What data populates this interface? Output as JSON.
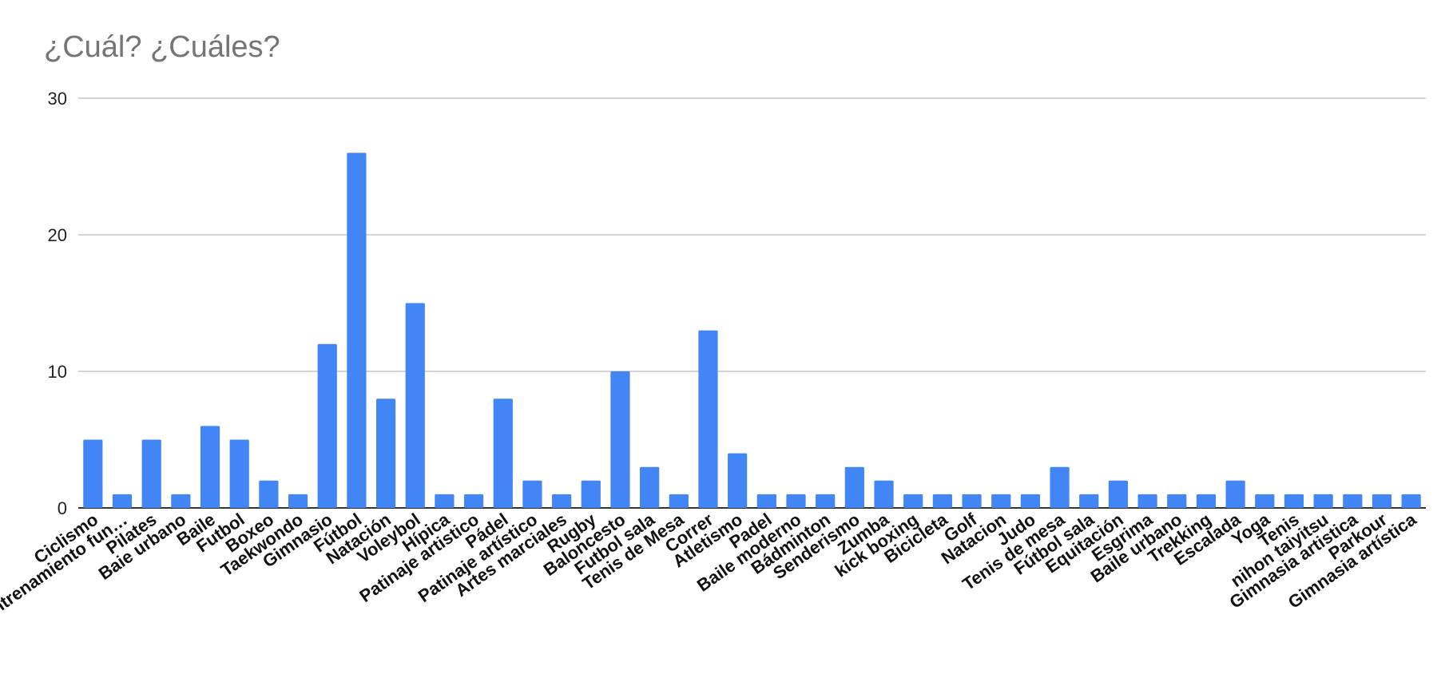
{
  "chart_data": {
    "type": "bar",
    "title": "¿Cuál? ¿Cuáles?",
    "xlabel": "",
    "ylabel": "",
    "ylim": [
      0,
      30
    ],
    "yticks": [
      0,
      10,
      20,
      30
    ],
    "grid": true,
    "legend": "none",
    "bar_color": "#4285f4",
    "categories": [
      "Ciclismo",
      "Entrenamiento fun…",
      "Pilates",
      "Baie urbano",
      "Baile",
      "Futbol",
      "Boxeo",
      "Taekwondo",
      "Gimnasio",
      "Fútbol",
      "Natación",
      "Voleybol",
      "Hípica",
      "Patinaje artistico",
      "Pádel",
      "Patinaje artístico",
      "Artes marciales",
      "Rugby",
      "Baloncesto",
      "Futbol sala",
      "Tenis de Mesa",
      "Correr",
      "Atletismo",
      "Padel",
      "Baile moderno",
      "Bádminton",
      "Senderismo",
      "Zumba",
      "kick boxing",
      "Bicicleta",
      "Golf",
      "Natacion",
      "Judo",
      "Tenis de mesa",
      "Fútbol sala",
      "Equitación",
      "Esgrima",
      "Baile urbano",
      "Trekking",
      "Escalada",
      "Yoga",
      "Tenis",
      "nihon taiyitsu",
      "Gimnasia artistica",
      "Parkour",
      "Gimnasia artística"
    ],
    "values": [
      5,
      1,
      5,
      1,
      6,
      5,
      2,
      1,
      12,
      26,
      8,
      15,
      1,
      1,
      8,
      2,
      1,
      2,
      10,
      3,
      1,
      13,
      4,
      1,
      1,
      1,
      3,
      2,
      1,
      1,
      1,
      1,
      1,
      3,
      1,
      2,
      1,
      1,
      1,
      2,
      1,
      1,
      1,
      1,
      1,
      1
    ]
  }
}
